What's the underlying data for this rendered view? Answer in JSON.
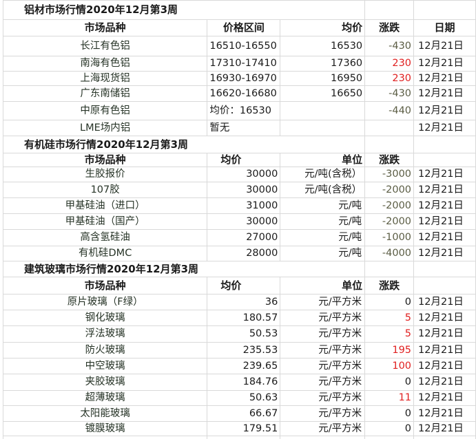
{
  "colors": {
    "up": "#e02020",
    "down": "#5b5d44",
    "flat": "#1a1a1a",
    "grid": "#d9d9d9"
  },
  "sections": [
    {
      "title": "铝材市场行情2020年12月第3周",
      "headers": [
        "市场品种",
        "价格区间",
        "均价",
        "涨跌",
        "日期"
      ],
      "rows": [
        [
          "长江有色铝",
          "16510-16550",
          "16530",
          "-430",
          "12月21日"
        ],
        [
          "南海有色铝",
          "17310-17410",
          "17360",
          "230",
          "12月21日"
        ],
        [
          "上海现货铝",
          "16930-16970",
          "16950",
          "230",
          "12月21日"
        ],
        [
          "广东南储铝",
          "16620-16680",
          "16650",
          "-430",
          "12月21日"
        ],
        [
          "中原有色铝",
          "均价：16530",
          "",
          "-440",
          "12月21日"
        ],
        [
          "LME场内铝",
          "暂无",
          "",
          "",
          "12月21日"
        ]
      ]
    },
    {
      "title": "有机硅市场行情2020年12月第3周",
      "headers": [
        "市场品种",
        "均价",
        "单位",
        "涨跌",
        ""
      ],
      "rows": [
        [
          "生胶报价",
          "30000",
          "元/吨(含税）",
          "-3000",
          "12月21日"
        ],
        [
          "107胶",
          "30000",
          "元/吨(含税）",
          "-2000",
          "12月21日"
        ],
        [
          "甲基硅油（进口）",
          "31000",
          "元/吨",
          "-2000",
          "12月21日"
        ],
        [
          "甲基硅油（国产）",
          "30000",
          "元/吨",
          "-2000",
          "12月21日"
        ],
        [
          "高含氢硅油",
          "27000",
          "元/吨",
          "-1000",
          "12月21日"
        ],
        [
          "有机硅DMC",
          "28000",
          "元/吨",
          "-4000",
          "12月21日"
        ]
      ]
    },
    {
      "title": "建筑玻璃市场行情2020年12月第3周",
      "headers": [
        "市场品种",
        "均价",
        "单位",
        "涨跌",
        ""
      ],
      "rows": [
        [
          "原片玻璃（F绿）",
          "36",
          "元/平方米",
          "0",
          "12月21日"
        ],
        [
          "钢化玻璃",
          "180.57",
          "元/平方米",
          "5",
          "12月21日"
        ],
        [
          "浮法玻璃",
          "50.53",
          "元/平方米",
          "5",
          "12月21日"
        ],
        [
          "防火玻璃",
          "235.53",
          "元/平方米",
          "195",
          "12月21日"
        ],
        [
          "中空玻璃",
          "239.65",
          "元/平方米",
          "100",
          "12月21日"
        ],
        [
          "夹胶玻璃",
          "184.76",
          "元/平方米",
          "0",
          "12月21日"
        ],
        [
          "超薄玻璃",
          "50.63",
          "元/平方米",
          "11",
          "12月21日"
        ],
        [
          "太阳能玻璃",
          "66.67",
          "元/平方米",
          "0",
          "12月21日"
        ],
        [
          "镀膜玻璃",
          "179.51",
          "元/平方米",
          "0",
          "12月21日"
        ]
      ]
    }
  ]
}
